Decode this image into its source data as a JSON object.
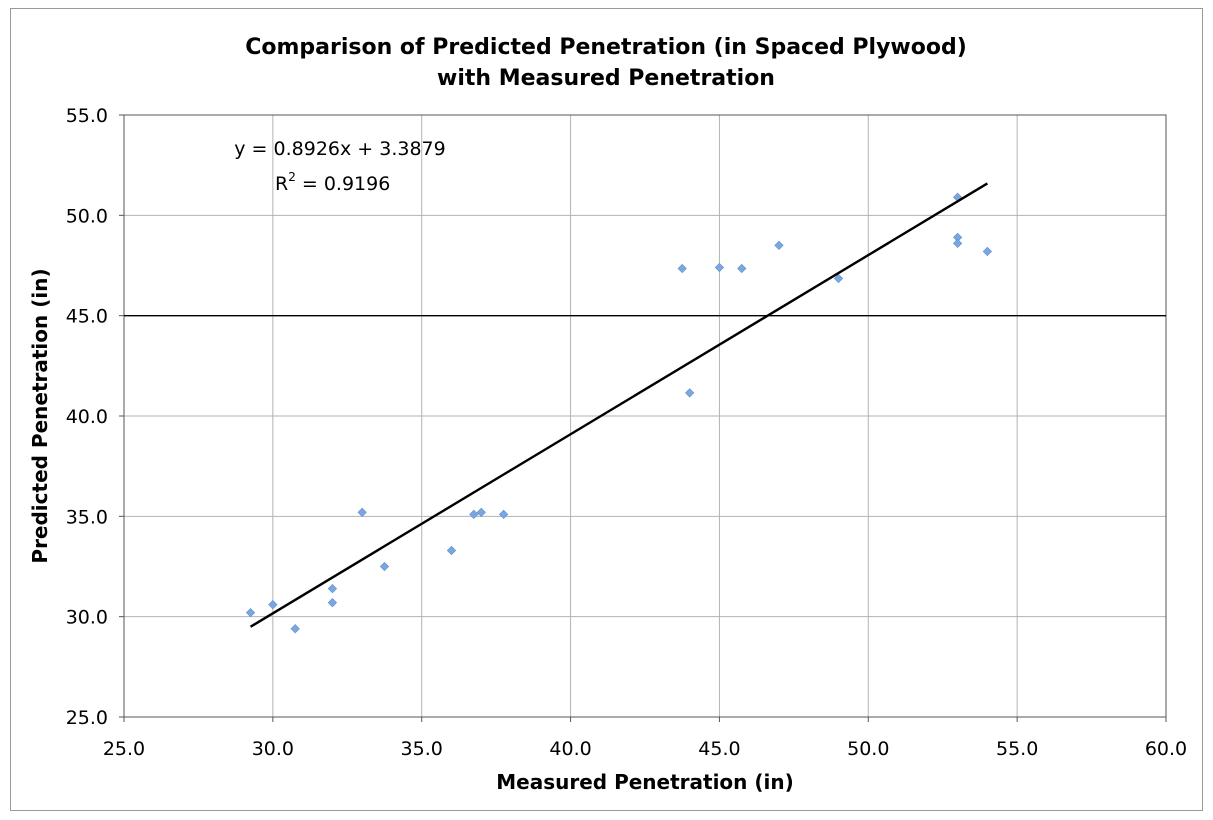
{
  "chart_data": {
    "type": "scatter",
    "title_lines": [
      "Comparison of Predicted Penetration (in Spaced Plywood)",
      "with Measured Penetration"
    ],
    "xlabel": "Measured Penetration (in)",
    "ylabel": "Predicted Penetration (in)",
    "xlim": [
      25.0,
      60.0
    ],
    "ylim": [
      25.0,
      55.0
    ],
    "x_ticks": [
      "25.0",
      "30.0",
      "35.0",
      "40.0",
      "45.0",
      "50.0",
      "55.0",
      "60.0"
    ],
    "y_ticks": [
      "25.0",
      "30.0",
      "35.0",
      "40.0",
      "45.0",
      "50.0",
      "55.0"
    ],
    "grid": true,
    "reference_line_y": 45.0,
    "marker_color": "#7ba7e0",
    "series": [
      {
        "points": [
          [
            29.25,
            30.2
          ],
          [
            30.0,
            30.6
          ],
          [
            30.75,
            29.4
          ],
          [
            32.0,
            31.4
          ],
          [
            32.0,
            30.7
          ],
          [
            33.0,
            35.2
          ],
          [
            33.75,
            32.5
          ],
          [
            36.0,
            33.3
          ],
          [
            36.75,
            35.1
          ],
          [
            37.0,
            35.2
          ],
          [
            37.75,
            35.1
          ],
          [
            43.75,
            47.35
          ],
          [
            44.0,
            41.15
          ],
          [
            45.0,
            47.4
          ],
          [
            45.75,
            47.35
          ],
          [
            47.0,
            48.5
          ],
          [
            49.0,
            46.85
          ],
          [
            53.0,
            50.9
          ],
          [
            53.0,
            48.9
          ],
          [
            53.0,
            48.6
          ],
          [
            54.0,
            48.2
          ]
        ]
      }
    ],
    "trendline": {
      "slope": 0.8926,
      "intercept": 3.3879,
      "x_range": [
        29.25,
        54.0
      ],
      "equation_text": "y = 0.8926x + 3.3879",
      "r2_prefix": "R",
      "r2_sup": "2",
      "r2_value_text": " = 0.9196"
    }
  }
}
